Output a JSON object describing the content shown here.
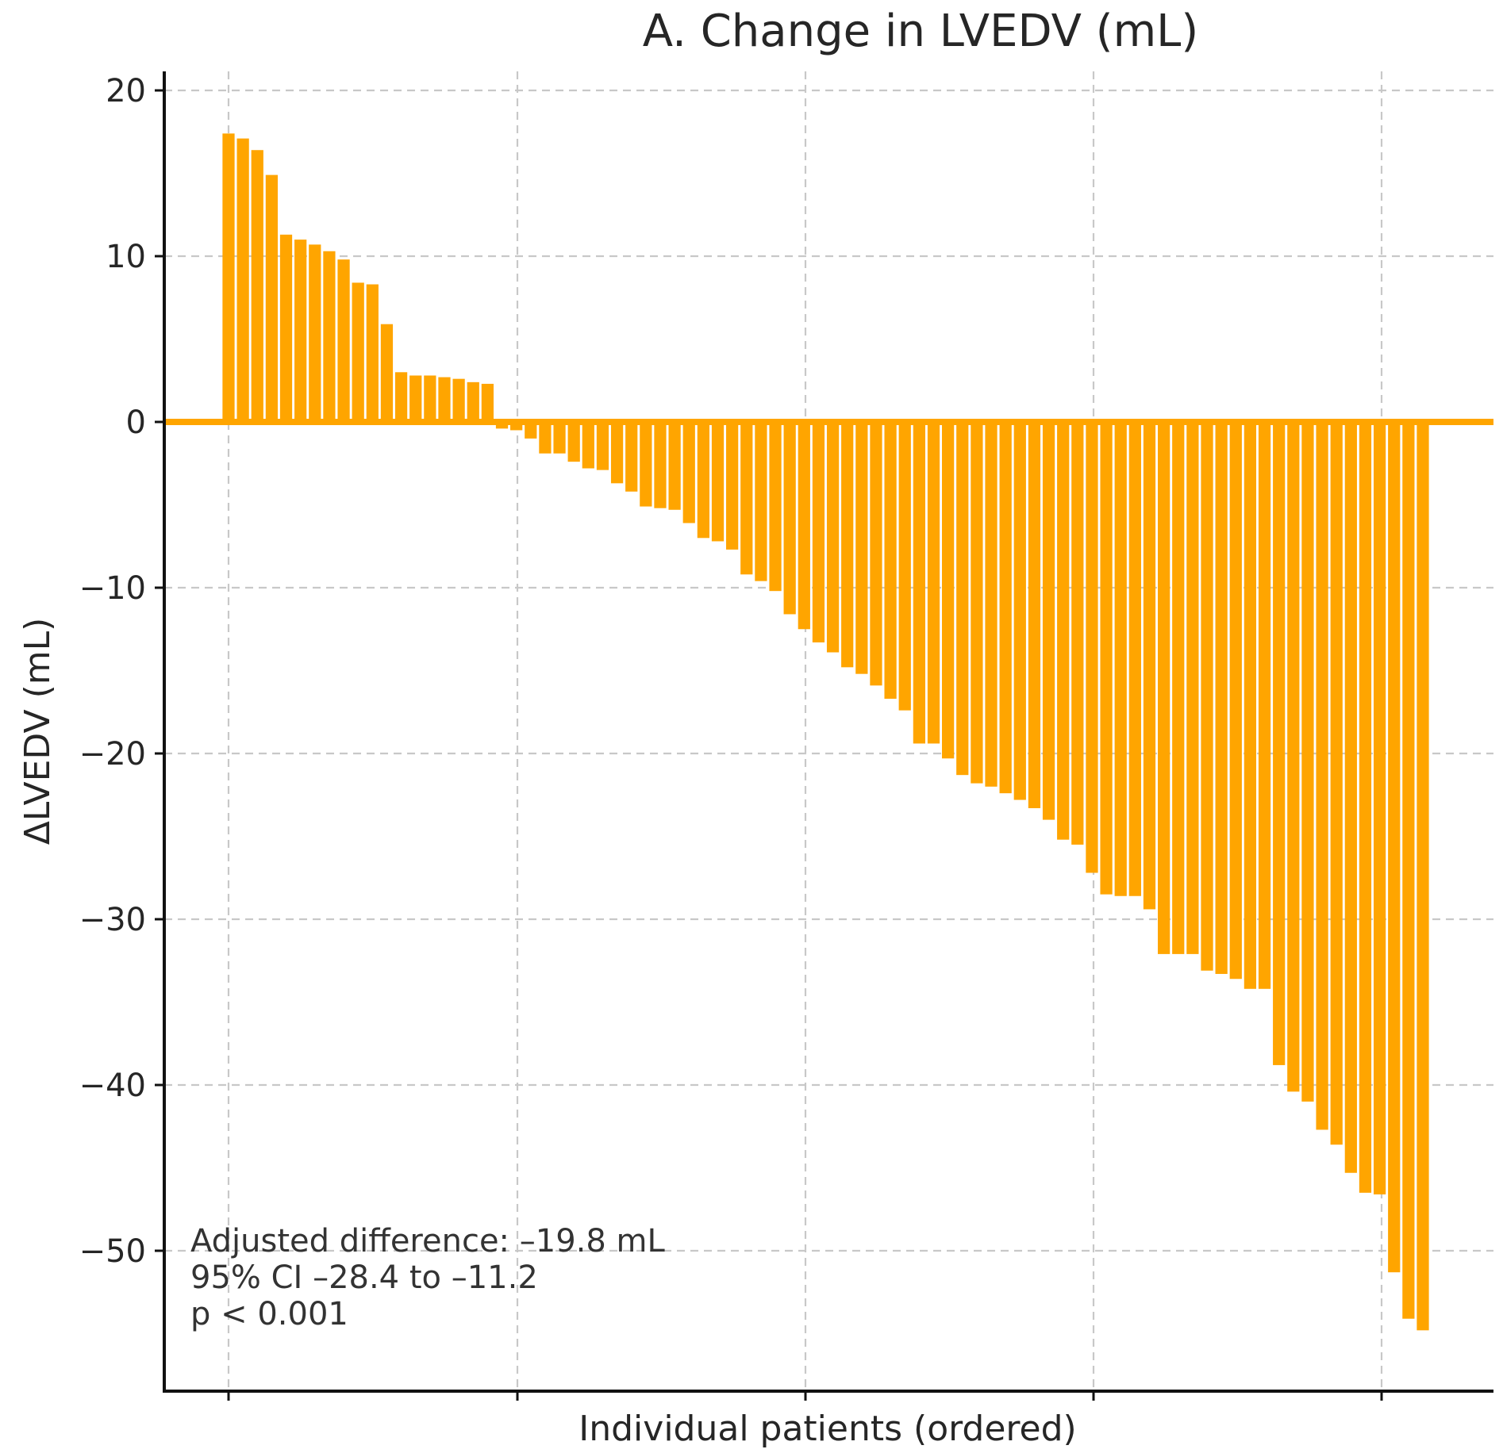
{
  "chart_data": {
    "type": "bar",
    "title": "A. Change in LVEDV (mL)",
    "xlabel": "Individual patients (ordered)",
    "ylabel": "ΔLVEDV (mL)",
    "ylim": [
      -58,
      21
    ],
    "yticks": [
      20,
      10,
      0,
      -10,
      -20,
      -30,
      -40,
      -50
    ],
    "ytick_labels": [
      "20",
      "10",
      "0",
      "−10",
      "−20",
      "−30",
      "−40",
      "−50"
    ],
    "grid": true,
    "bar_color": "#FFA500",
    "zero_line_color": "#FFA500",
    "series": [
      {
        "values": [
          17.4,
          17.1,
          16.4,
          14.9,
          11.3,
          11.0,
          10.7,
          10.3,
          9.8,
          8.4,
          8.3,
          5.9,
          3.0,
          2.8,
          2.8,
          2.7,
          2.6,
          2.4,
          2.3,
          -0.4,
          -0.5,
          -1.0,
          -1.9,
          -1.9,
          -2.4,
          -2.8,
          -2.9,
          -3.7,
          -4.2,
          -5.1,
          -5.2,
          -5.3,
          -6.1,
          -7.0,
          -7.2,
          -7.7,
          -9.2,
          -9.6,
          -10.2,
          -11.6,
          -12.5,
          -13.3,
          -13.9,
          -14.8,
          -15.2,
          -15.9,
          -16.7,
          -17.4,
          -19.4,
          -19.4,
          -20.3,
          -21.3,
          -21.8,
          -22.0,
          -22.4,
          -22.8,
          -23.3,
          -24.0,
          -25.2,
          -25.5,
          -27.2,
          -28.5,
          -28.6,
          -28.6,
          -29.4,
          -32.1,
          -32.1,
          -32.1,
          -33.1,
          -33.3,
          -33.6,
          -34.2,
          -34.2,
          -38.8,
          -40.4,
          -41.0,
          -42.7,
          -43.6,
          -45.3,
          -46.5,
          -46.6,
          -51.3,
          -54.1,
          -54.8
        ]
      }
    ],
    "annotations": [
      "Adjusted difference: –19.8 mL",
      "95% CI –28.4 to –11.2",
      "p < 0.001"
    ]
  }
}
